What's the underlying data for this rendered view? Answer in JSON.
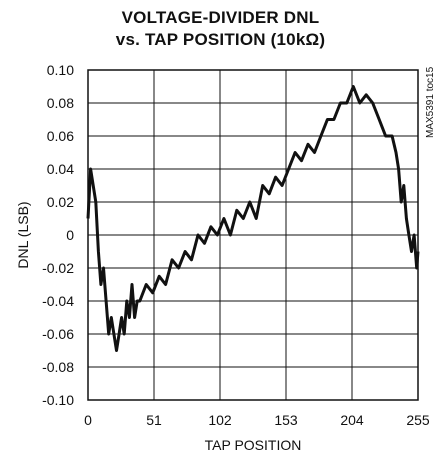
{
  "chart_data": {
    "type": "line",
    "title": [
      "VOLTAGE-DIVIDER DNL",
      "vs. TAP POSITION (10kΩ)"
    ],
    "xlabel": "TAP POSITION",
    "ylabel": "DNL (LSB)",
    "xlim": [
      0,
      255
    ],
    "ylim": [
      -0.1,
      0.1
    ],
    "grid": true,
    "x_ticks": [
      0,
      51,
      102,
      153,
      204,
      255
    ],
    "x_tick_labels": [
      "0",
      "51",
      "102",
      "153",
      "204",
      "255"
    ],
    "y_ticks": [
      0.1,
      0.08,
      0.06,
      0.04,
      0.02,
      0,
      -0.02,
      -0.04,
      -0.06,
      -0.08,
      -0.1
    ],
    "y_tick_labels": [
      "0.10",
      "0.08",
      "0.06",
      "0.04",
      "0.02",
      "0",
      "-0.02",
      "-0.04",
      "-0.06",
      "-0.08",
      "-0.10"
    ],
    "annotation": "MAX5391 toc15",
    "line_color": "#111111",
    "series": [
      {
        "x": [
          0,
          2,
          4,
          6,
          8,
          10,
          12,
          14,
          16,
          18,
          20,
          22,
          24,
          26,
          28,
          30,
          32,
          34,
          36,
          38,
          40,
          45,
          50,
          55,
          60,
          65,
          70,
          75,
          80,
          85,
          90,
          95,
          100,
          105,
          110,
          115,
          120,
          125,
          130,
          135,
          140,
          145,
          150,
          155,
          160,
          165,
          170,
          175,
          180,
          185,
          190,
          195,
          200,
          205,
          210,
          215,
          220,
          225,
          230,
          235,
          238,
          240,
          242,
          244,
          246,
          248,
          250,
          252,
          254,
          255
        ],
        "y": [
          0.01,
          0.04,
          0.03,
          0.02,
          -0.01,
          -0.03,
          -0.02,
          -0.04,
          -0.06,
          -0.05,
          -0.06,
          -0.07,
          -0.06,
          -0.05,
          -0.06,
          -0.04,
          -0.05,
          -0.03,
          -0.05,
          -0.04,
          -0.04,
          -0.03,
          -0.035,
          -0.025,
          -0.03,
          -0.015,
          -0.02,
          -0.01,
          -0.015,
          0.0,
          -0.005,
          0.005,
          0.0,
          0.01,
          0.0,
          0.015,
          0.01,
          0.02,
          0.01,
          0.03,
          0.025,
          0.035,
          0.03,
          0.04,
          0.05,
          0.045,
          0.055,
          0.05,
          0.06,
          0.07,
          0.07,
          0.08,
          0.08,
          0.09,
          0.08,
          0.085,
          0.08,
          0.07,
          0.06,
          0.06,
          0.05,
          0.04,
          0.02,
          0.03,
          0.01,
          0.0,
          -0.01,
          0.0,
          -0.02,
          -0.01
        ]
      }
    ]
  }
}
